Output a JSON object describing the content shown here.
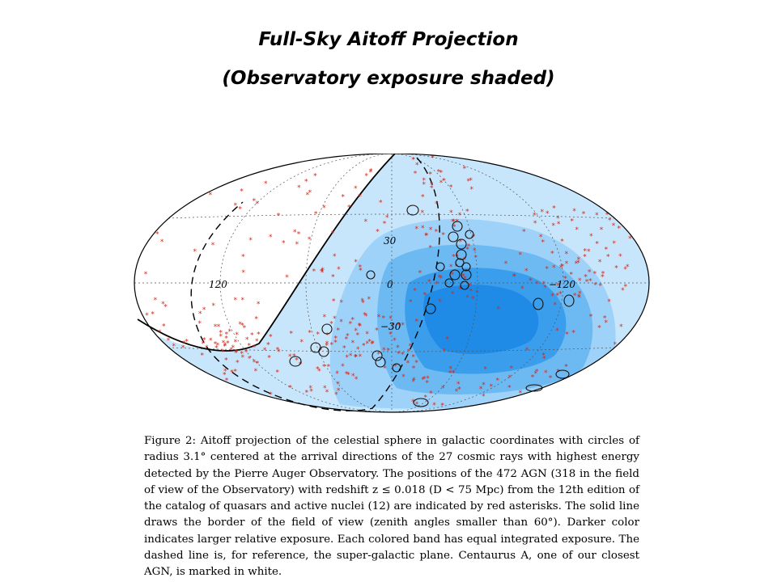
{
  "title_line1": "Full-Sky Aitoff Projection",
  "title_line2": "(Observatory exposure shaded)",
  "map": {
    "projection": "Aitoff",
    "coordinates": "galactic",
    "lon_labels": [
      "120",
      "0",
      "−120"
    ],
    "lat_labels": [
      "30",
      "−30"
    ],
    "colors": {
      "unexposed": "#ffffff",
      "band1": "#c8e6fb",
      "band2": "#9fd2f8",
      "band3": "#6dbaf3",
      "band4": "#3b9eec",
      "band5": "#1f8be6",
      "agn_marker": "#d42a1a",
      "event_circle": "#111111"
    },
    "circle_radius_deg": 3.1,
    "n_cosmic_rays": 27,
    "n_agn": 472
  },
  "caption": "Figure 2: Aitoff projection of the celestial sphere in galactic coordinates with circles of radius 3.1° centered at the arrival directions of the 27 cosmic rays with highest energy detected by the Pierre Auger Observatory. The positions of the 472 AGN (318 in the field of view of the Observatory) with redshift z ≤ 0.018 (D < 75 Mpc) from the 12th edition of the catalog of quasars and active nuclei (12) are indicated by red asterisks. The solid line draws the border of the field of view (zenith angles smaller than 60°). Darker color indicates larger relative exposure. Each colored band has equal integrated exposure. The dashed line is, for reference, the super-galactic plane. Centaurus A, one of our closest AGN, is marked in white."
}
